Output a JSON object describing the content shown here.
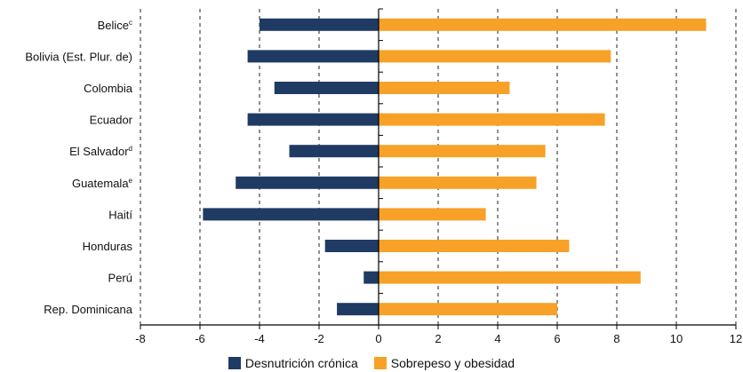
{
  "chart_data": {
    "type": "bar",
    "orientation": "horizontal",
    "categories": [
      "Belice",
      "Bolivia (Est. Plur. de)",
      "Colombia",
      "Ecuador",
      "El Salvador",
      "Guatemala",
      "Haití",
      "Honduras",
      "Perú",
      "Rep. Dominicana"
    ],
    "category_superscripts": [
      "c",
      "",
      "",
      "",
      "d",
      "e",
      "",
      "",
      "",
      ""
    ],
    "series": [
      {
        "name": "Desnutrición crónica",
        "color": "#1f3b63",
        "values": [
          -4.0,
          -4.4,
          -3.5,
          -4.4,
          -3.0,
          -4.8,
          -5.9,
          -1.8,
          -0.5,
          -1.4
        ]
      },
      {
        "name": "Sobrepeso y obesidad",
        "color": "#f7a128",
        "values": [
          11.0,
          7.8,
          4.4,
          7.6,
          5.6,
          5.3,
          3.6,
          6.4,
          8.8,
          6.0
        ]
      }
    ],
    "xlim": [
      -8,
      12
    ],
    "xticks": [
      "-8",
      "-6",
      "-4",
      "-2",
      "0",
      "2",
      "4",
      "6",
      "8",
      "10",
      "12"
    ],
    "grid": "vertical dashed",
    "legend_position": "bottom"
  }
}
